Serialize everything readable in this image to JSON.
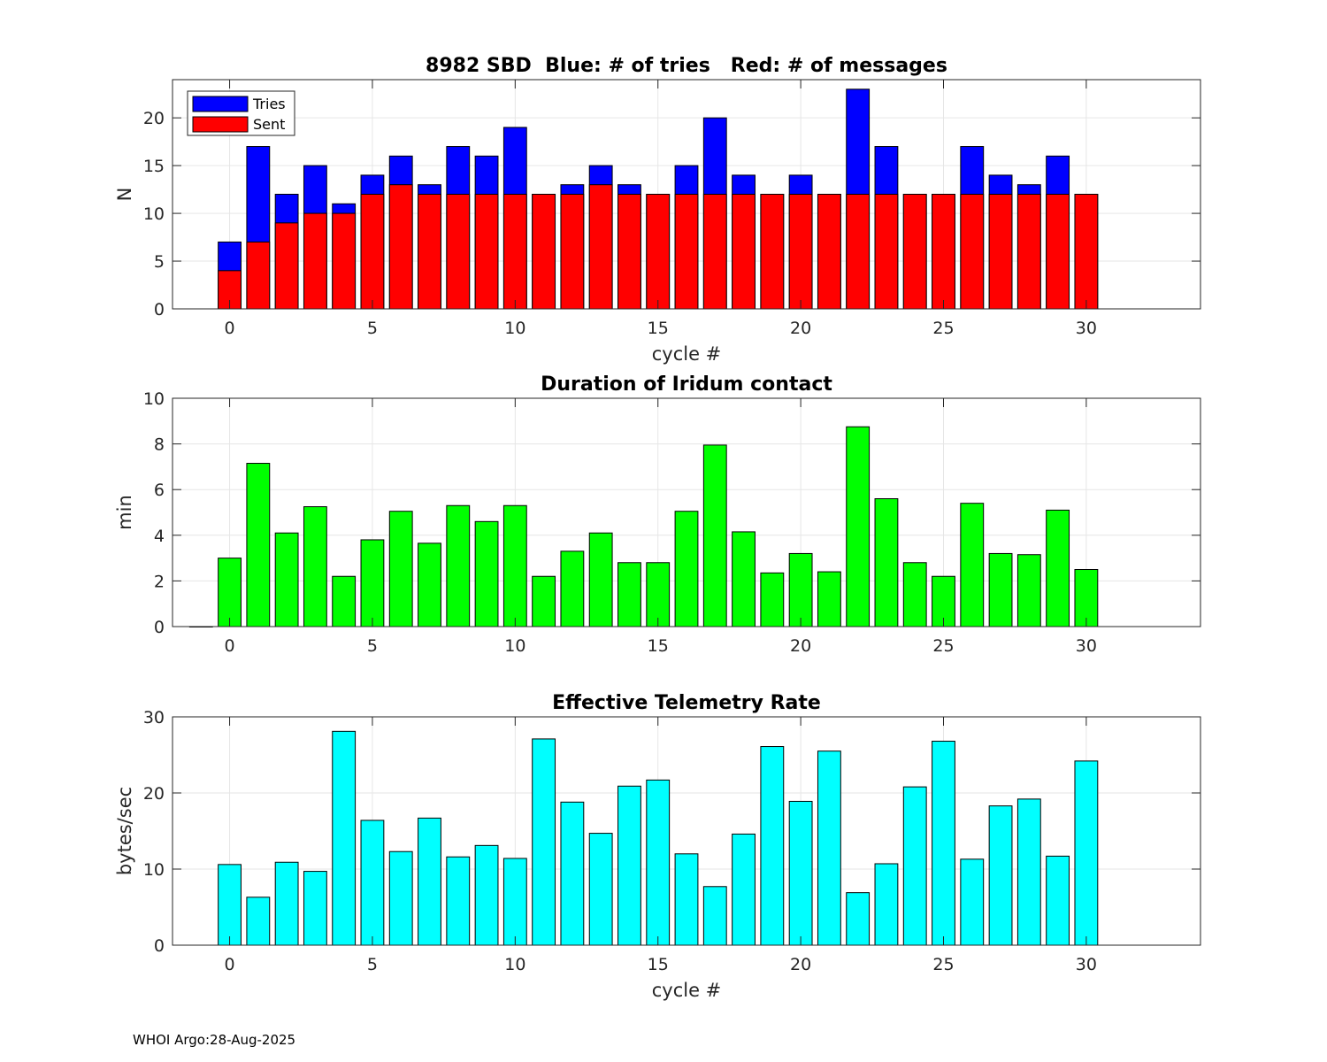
{
  "footer": "WHOI Argo:28-Aug-2025",
  "colors": {
    "tries": "#0000ff",
    "sent": "#ff0000",
    "duration": "#00ff00",
    "rate": "#00ffff"
  },
  "chart_data": [
    {
      "type": "bar",
      "title": "8982 SBD  Blue: # of tries   Red: # of messages",
      "xlabel": "cycle #",
      "ylabel": "N",
      "xlim": [
        -2,
        34
      ],
      "ylim": [
        0,
        24
      ],
      "xticks": [
        0,
        5,
        10,
        15,
        20,
        25,
        30
      ],
      "yticks": [
        0,
        5,
        10,
        15,
        20
      ],
      "grid": true,
      "legend": {
        "position": "top-left",
        "entries": [
          "Tries",
          "Sent"
        ]
      },
      "x": [
        0,
        1,
        2,
        3,
        4,
        5,
        6,
        7,
        8,
        9,
        10,
        11,
        12,
        13,
        14,
        15,
        16,
        17,
        18,
        19,
        20,
        21,
        22,
        23,
        24,
        25,
        26,
        27,
        28,
        29,
        30
      ],
      "series": [
        {
          "name": "Tries",
          "color": "#0000ff",
          "values": [
            7,
            17,
            12,
            15,
            11,
            14,
            16,
            13,
            17,
            16,
            19,
            12,
            13,
            15,
            13,
            12,
            15,
            20,
            14,
            12,
            14,
            12,
            23,
            17,
            12,
            12,
            17,
            14,
            13,
            16,
            12
          ]
        },
        {
          "name": "Sent",
          "color": "#ff0000",
          "values": [
            4,
            7,
            9,
            10,
            10,
            12,
            13,
            12,
            12,
            12,
            12,
            12,
            12,
            13,
            12,
            12,
            12,
            12,
            12,
            12,
            12,
            12,
            12,
            12,
            12,
            12,
            12,
            12,
            12,
            12,
            12
          ]
        }
      ]
    },
    {
      "type": "bar",
      "title": "Duration of Iridum contact",
      "xlabel": "",
      "ylabel": "min",
      "xlim": [
        -2,
        34
      ],
      "ylim": [
        0,
        10
      ],
      "xticks": [
        0,
        5,
        10,
        15,
        20,
        25,
        30
      ],
      "yticks": [
        0,
        2,
        4,
        6,
        8,
        10
      ],
      "grid": true,
      "x": [
        -1,
        0,
        1,
        2,
        3,
        4,
        5,
        6,
        7,
        8,
        9,
        10,
        11,
        12,
        13,
        14,
        15,
        16,
        17,
        18,
        19,
        20,
        21,
        22,
        23,
        24,
        25,
        26,
        27,
        28,
        29,
        30
      ],
      "series": [
        {
          "name": "Duration",
          "color": "#00ff00",
          "values": [
            0,
            3.0,
            7.15,
            4.1,
            5.25,
            2.2,
            3.8,
            5.05,
            3.65,
            5.3,
            4.6,
            5.3,
            2.2,
            3.3,
            4.1,
            2.8,
            2.8,
            5.05,
            7.95,
            4.15,
            2.35,
            3.2,
            2.4,
            8.75,
            5.6,
            2.8,
            2.2,
            5.4,
            3.2,
            3.15,
            5.1,
            2.5
          ]
        }
      ]
    },
    {
      "type": "bar",
      "title": "Effective Telemetry Rate",
      "xlabel": "cycle #",
      "ylabel": "bytes/sec",
      "xlim": [
        -2,
        34
      ],
      "ylim": [
        0,
        30
      ],
      "xticks": [
        0,
        5,
        10,
        15,
        20,
        25,
        30
      ],
      "yticks": [
        0,
        10,
        20,
        30
      ],
      "grid": true,
      "x": [
        0,
        1,
        2,
        3,
        4,
        5,
        6,
        7,
        8,
        9,
        10,
        11,
        12,
        13,
        14,
        15,
        16,
        17,
        18,
        19,
        20,
        21,
        22,
        23,
        24,
        25,
        26,
        27,
        28,
        29,
        30
      ],
      "series": [
        {
          "name": "Rate",
          "color": "#00ffff",
          "values": [
            10.6,
            6.3,
            10.9,
            9.7,
            28.1,
            16.4,
            12.3,
            16.7,
            11.6,
            13.1,
            11.4,
            27.1,
            18.8,
            14.7,
            20.9,
            21.7,
            12.0,
            7.7,
            14.6,
            26.1,
            18.9,
            25.5,
            6.9,
            10.7,
            20.8,
            26.8,
            11.3,
            18.3,
            19.2,
            11.7,
            24.2
          ]
        }
      ]
    }
  ]
}
